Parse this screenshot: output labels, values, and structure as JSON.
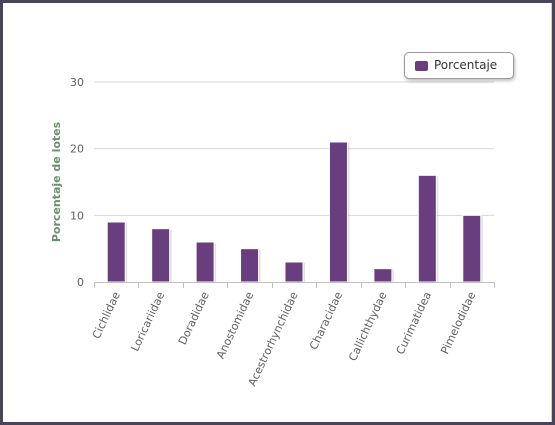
{
  "chart_data": {
    "type": "bar",
    "title": "",
    "xlabel": "",
    "ylabel": "Porcentaje de lotes",
    "ylim": [
      0,
      30
    ],
    "yticks": [
      0,
      10,
      20,
      30
    ],
    "grid": true,
    "legend_position": "top-right",
    "categories": [
      "Cichlidae",
      "Loricariidae",
      "Doradidae",
      "Anostomidae",
      "Acestrorhynchidae",
      "Characidae",
      "Callichthydae",
      "Curimatidea",
      "Pimelodidae"
    ],
    "series": [
      {
        "name": "Porcentaje",
        "color": "#693e7e",
        "values": [
          9,
          8,
          6,
          5,
          3,
          21,
          2,
          16,
          10
        ]
      }
    ]
  }
}
